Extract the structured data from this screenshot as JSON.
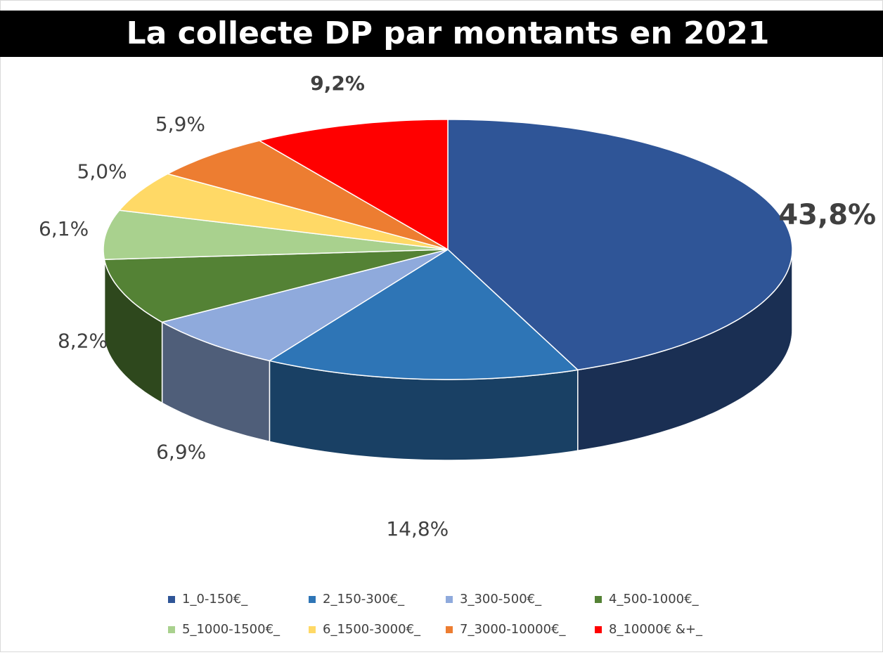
{
  "chart_data": {
    "type": "pie3d",
    "title": "La collecte DP par montants en 2021",
    "categories": [
      "1_0-150€_",
      "2_150-300€_",
      "3_300-500€_",
      "4_500-1000€_",
      "5_1000-1500€_",
      "6_1500-3000€_",
      "7_3000-10000€_",
      "8_10000€ &+_"
    ],
    "values": [
      43.8,
      14.8,
      6.9,
      8.2,
      6.1,
      5.0,
      5.9,
      9.2
    ],
    "value_labels": [
      "43,8%",
      "14,8%",
      "6,9%",
      "8,2%",
      "6,1%",
      "5,0%",
      "5,9%",
      "9,2%"
    ],
    "colors": [
      "#2f5597",
      "#2e75b6",
      "#8faadc",
      "#548235",
      "#a9d18e",
      "#ffd966",
      "#ed7d31",
      "#ff0000"
    ],
    "legend": "bottom"
  }
}
